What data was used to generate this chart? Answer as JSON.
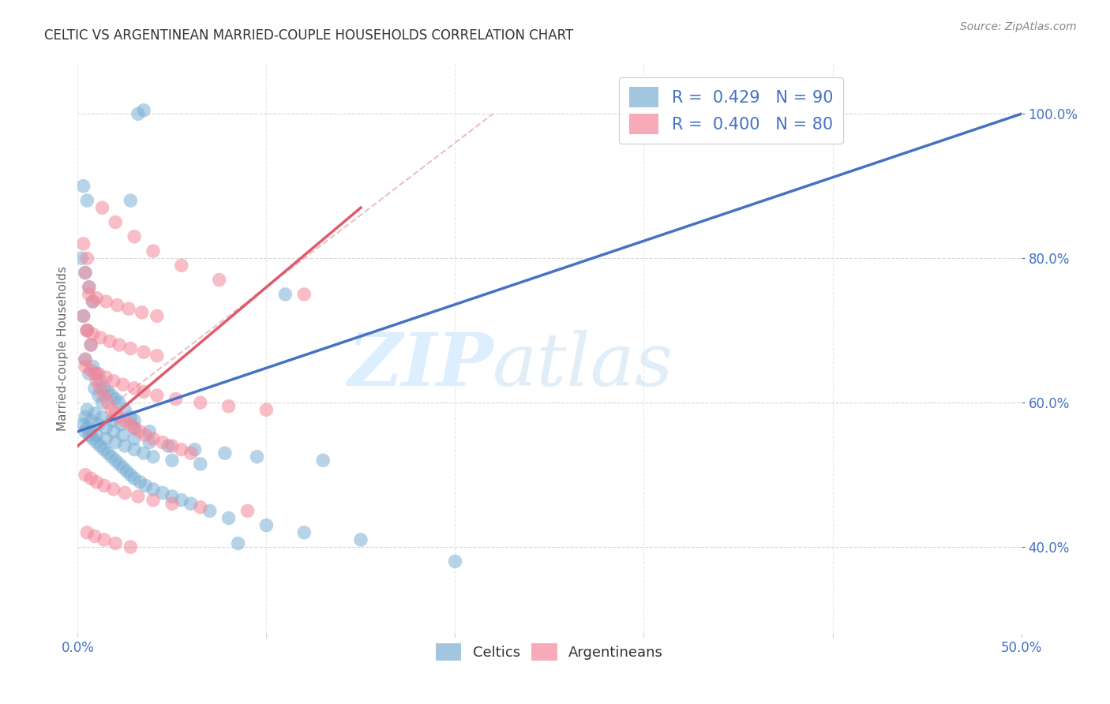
{
  "title": "CELTIC VS ARGENTINEAN MARRIED-COUPLE HOUSEHOLDS CORRELATION CHART",
  "source": "Source: ZipAtlas.com",
  "ylabel": "Married-couple Households",
  "xmin": 0.0,
  "xmax": 50.0,
  "ymin": 28.0,
  "ymax": 107.0,
  "yticks": [
    40.0,
    60.0,
    80.0,
    100.0
  ],
  "ytick_labels": [
    "40.0%",
    "60.0%",
    "80.0%",
    "100.0%"
  ],
  "xticks": [
    0.0,
    10.0,
    20.0,
    30.0,
    40.0,
    50.0
  ],
  "xtick_labels": [
    "0.0%",
    "",
    "",
    "",
    "",
    "50.0%"
  ],
  "celtics_color": "#7bafd4",
  "argentineans_color": "#f4879a",
  "celtics_line_color": "#4472c4",
  "argentineans_line_color": "#e05a6e",
  "diagonal_line_color": "#e8b8c0",
  "background_color": "#ffffff",
  "grid_color": "#c8c8c8",
  "title_color": "#333333",
  "source_color": "#888888",
  "axis_label_color": "#4472c4",
  "celtics_line_x0": 0.0,
  "celtics_line_y0": 56.0,
  "celtics_line_x1": 50.0,
  "celtics_line_y1": 100.0,
  "argent_line_x0": 0.0,
  "argent_line_y0": 54.0,
  "argent_line_x1": 15.0,
  "argent_line_y1": 87.0,
  "diag_x0": 2.0,
  "diag_y0": 60.0,
  "diag_x1": 22.0,
  "diag_y1": 100.0,
  "celtics_scatter_x": [
    3.2,
    3.5,
    2.8,
    0.3,
    0.5,
    0.2,
    0.4,
    0.6,
    0.8,
    0.3,
    0.5,
    0.7,
    0.4,
    0.6,
    0.9,
    1.1,
    1.3,
    0.8,
    1.0,
    1.2,
    1.4,
    1.6,
    1.8,
    2.0,
    2.2,
    2.5,
    2.8,
    3.0,
    0.4,
    0.6,
    0.8,
    1.0,
    1.2,
    1.4,
    1.6,
    1.8,
    2.0,
    2.2,
    2.4,
    2.6,
    2.8,
    3.0,
    3.3,
    3.6,
    4.0,
    4.5,
    5.0,
    5.5,
    6.0,
    7.0,
    8.0,
    10.0,
    12.0,
    15.0,
    20.0,
    0.3,
    0.5,
    0.7,
    1.0,
    1.5,
    2.0,
    2.5,
    3.0,
    3.5,
    4.0,
    5.0,
    6.5,
    8.5,
    11.0,
    0.4,
    0.7,
    1.1,
    1.5,
    1.9,
    2.4,
    3.0,
    3.8,
    4.8,
    6.2,
    7.8,
    9.5,
    13.0,
    0.5,
    0.9,
    1.3,
    1.8,
    2.3,
    3.0,
    3.8
  ],
  "celtics_scatter_y": [
    100.0,
    100.5,
    88.0,
    90.0,
    88.0,
    80.0,
    78.0,
    76.0,
    74.0,
    72.0,
    70.0,
    68.0,
    66.0,
    64.0,
    62.0,
    61.0,
    60.0,
    65.0,
    64.0,
    63.0,
    62.0,
    61.5,
    61.0,
    60.5,
    60.0,
    59.0,
    58.0,
    57.5,
    56.0,
    55.5,
    55.0,
    54.5,
    54.0,
    53.5,
    53.0,
    52.5,
    52.0,
    51.5,
    51.0,
    50.5,
    50.0,
    49.5,
    49.0,
    48.5,
    48.0,
    47.5,
    47.0,
    46.5,
    46.0,
    45.0,
    44.0,
    43.0,
    42.0,
    41.0,
    38.0,
    57.0,
    56.5,
    56.0,
    55.5,
    55.0,
    54.5,
    54.0,
    53.5,
    53.0,
    52.5,
    52.0,
    51.5,
    40.5,
    75.0,
    58.0,
    57.5,
    57.0,
    56.5,
    56.0,
    55.5,
    55.0,
    54.5,
    54.0,
    53.5,
    53.0,
    52.5,
    52.0,
    59.0,
    58.5,
    58.0,
    57.5,
    57.0,
    56.5,
    56.0
  ],
  "argentineans_scatter_x": [
    0.3,
    0.5,
    0.4,
    0.6,
    0.8,
    0.3,
    0.5,
    0.7,
    0.4,
    0.9,
    1.0,
    1.2,
    1.4,
    1.6,
    1.8,
    2.0,
    2.2,
    2.5,
    2.8,
    3.0,
    3.3,
    3.6,
    4.0,
    4.5,
    5.0,
    5.5,
    6.0,
    0.4,
    0.7,
    1.1,
    1.5,
    1.9,
    2.4,
    3.0,
    3.5,
    4.2,
    5.2,
    6.5,
    8.0,
    10.0,
    0.5,
    0.8,
    1.2,
    1.7,
    2.2,
    2.8,
    3.5,
    4.2,
    0.6,
    1.0,
    1.5,
    2.1,
    2.7,
    3.4,
    4.2,
    1.3,
    2.0,
    3.0,
    4.0,
    5.5,
    7.5,
    12.0,
    0.4,
    0.7,
    1.0,
    1.4,
    1.9,
    2.5,
    3.2,
    4.0,
    5.0,
    6.5,
    9.0,
    0.5,
    0.9,
    1.4,
    2.0,
    2.8
  ],
  "argentineans_scatter_y": [
    82.0,
    80.0,
    78.0,
    76.0,
    74.0,
    72.0,
    70.0,
    68.0,
    66.0,
    64.0,
    63.0,
    62.0,
    61.0,
    60.0,
    59.0,
    58.5,
    58.0,
    57.5,
    57.0,
    56.5,
    56.0,
    55.5,
    55.0,
    54.5,
    54.0,
    53.5,
    53.0,
    65.0,
    64.5,
    64.0,
    63.5,
    63.0,
    62.5,
    62.0,
    61.5,
    61.0,
    60.5,
    60.0,
    59.5,
    59.0,
    70.0,
    69.5,
    69.0,
    68.5,
    68.0,
    67.5,
    67.0,
    66.5,
    75.0,
    74.5,
    74.0,
    73.5,
    73.0,
    72.5,
    72.0,
    87.0,
    85.0,
    83.0,
    81.0,
    79.0,
    77.0,
    75.0,
    50.0,
    49.5,
    49.0,
    48.5,
    48.0,
    47.5,
    47.0,
    46.5,
    46.0,
    45.5,
    45.0,
    42.0,
    41.5,
    41.0,
    40.5,
    40.0
  ]
}
